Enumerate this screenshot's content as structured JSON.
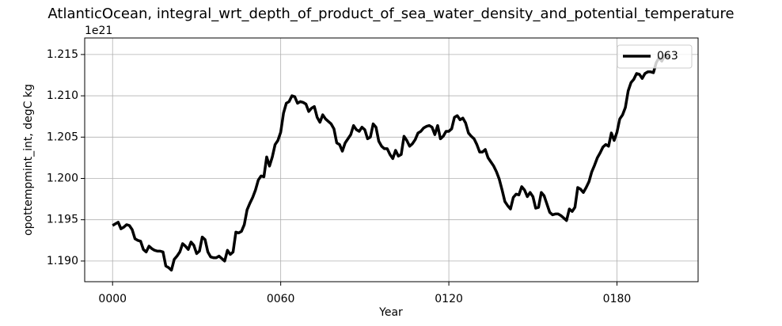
{
  "chart_data": {
    "type": "line",
    "title": "AtlanticOcean, integral_wrt_depth_of_product_of_sea_water_density_and_potential_temperature",
    "x_label": "Year",
    "y_label": "opottempmint_int, degC kg",
    "y_offset_label": "1e21",
    "x": [
      0,
      1,
      2,
      3,
      4,
      5,
      6,
      7,
      8,
      9,
      10,
      11,
      12,
      13,
      14,
      15,
      16,
      17,
      18,
      19,
      20,
      21,
      22,
      23,
      24,
      25,
      26,
      27,
      28,
      29,
      30,
      31,
      32,
      33,
      34,
      35,
      36,
      37,
      38,
      39,
      40,
      41,
      42,
      43,
      44,
      45,
      46,
      47,
      48,
      49,
      50,
      51,
      52,
      53,
      54,
      55,
      56,
      57,
      58,
      59,
      60,
      61,
      62,
      63,
      64,
      65,
      66,
      67,
      68,
      69,
      70,
      71,
      72,
      73,
      74,
      75,
      76,
      77,
      78,
      79,
      80,
      81,
      82,
      83,
      84,
      85,
      86,
      87,
      88,
      89,
      90,
      91,
      92,
      93,
      94,
      95,
      96,
      97,
      98,
      99,
      100,
      101,
      102,
      103,
      104,
      105,
      106,
      107,
      108,
      109,
      110,
      111,
      112,
      113,
      114,
      115,
      116,
      117,
      118,
      119,
      120,
      121,
      122,
      123,
      124,
      125,
      126,
      127,
      128,
      129,
      130,
      131,
      132,
      133,
      134,
      135,
      136,
      137,
      138,
      139,
      140,
      141,
      142,
      143,
      144,
      145,
      146,
      147,
      148,
      149,
      150,
      151,
      152,
      153,
      154,
      155,
      156,
      157,
      158,
      159,
      160,
      161,
      162,
      163,
      164,
      165,
      166,
      167,
      168,
      169,
      170,
      171,
      172,
      173,
      174,
      175,
      176,
      177,
      178,
      179,
      180,
      181,
      182,
      183,
      184,
      185,
      186,
      187,
      188,
      189,
      190,
      191,
      192,
      193,
      194,
      195,
      196,
      197,
      198,
      199
    ],
    "series": [
      {
        "name": "063",
        "color": "#000000",
        "values": [
          1.1943,
          1.1945,
          1.1947,
          1.1939,
          1.1941,
          1.1944,
          1.1943,
          1.1938,
          1.1927,
          1.1925,
          1.1924,
          1.1914,
          1.1911,
          1.1918,
          1.1915,
          1.1913,
          1.1912,
          1.1912,
          1.1911,
          1.1894,
          1.1892,
          1.1889,
          1.1902,
          1.1906,
          1.1911,
          1.1921,
          1.1918,
          1.1914,
          1.1923,
          1.1919,
          1.1909,
          1.1912,
          1.1929,
          1.1926,
          1.1911,
          1.1905,
          1.1904,
          1.1904,
          1.1906,
          1.1903,
          1.19,
          1.1913,
          1.1908,
          1.1911,
          1.1935,
          1.1934,
          1.1936,
          1.1944,
          1.1962,
          1.197,
          1.1977,
          1.1986,
          1.1998,
          1.2003,
          1.2002,
          1.2026,
          1.2015,
          1.2026,
          1.2041,
          1.2046,
          1.2056,
          1.2079,
          1.2091,
          1.2093,
          1.21,
          1.2099,
          1.2091,
          1.2093,
          1.2092,
          1.209,
          1.2081,
          1.2085,
          1.2087,
          1.2074,
          1.2068,
          1.2077,
          1.2072,
          1.2069,
          1.2066,
          1.206,
          1.2043,
          1.2041,
          1.2033,
          1.2043,
          1.2048,
          1.2053,
          1.2064,
          1.2059,
          1.2057,
          1.2062,
          1.2059,
          1.2048,
          1.205,
          1.2066,
          1.2062,
          1.2045,
          1.2039,
          1.2036,
          1.2036,
          1.2029,
          1.2024,
          1.2034,
          1.2027,
          1.2029,
          1.2051,
          1.2046,
          1.2039,
          1.2042,
          1.2047,
          1.2055,
          1.2057,
          1.2061,
          1.2063,
          1.2064,
          1.2062,
          1.2053,
          1.2064,
          1.2048,
          1.2051,
          1.2057,
          1.2057,
          1.206,
          1.2074,
          1.2076,
          1.2071,
          1.2073,
          1.2067,
          1.2055,
          1.2051,
          1.2048,
          1.2041,
          1.2032,
          1.2032,
          1.2035,
          1.2025,
          1.202,
          1.2015,
          1.2008,
          1.1999,
          1.1986,
          1.1972,
          1.1967,
          1.1963,
          1.1977,
          1.1981,
          1.198,
          1.199,
          1.1986,
          1.1978,
          1.1983,
          1.1978,
          1.1964,
          1.1965,
          1.1983,
          1.1979,
          1.1969,
          1.1959,
          1.1956,
          1.1957,
          1.1957,
          1.1955,
          1.1952,
          1.1949,
          1.1963,
          1.196,
          1.1965,
          1.1989,
          1.1987,
          1.1983,
          1.1989,
          1.1996,
          1.2008,
          1.2016,
          1.2025,
          1.2031,
          1.2038,
          1.2041,
          1.2039,
          1.2055,
          1.2046,
          1.2056,
          1.2072,
          1.2077,
          1.2086,
          1.2106,
          1.2116,
          1.212,
          1.2127,
          1.2126,
          1.2121,
          1.2127,
          1.2129,
          1.2129,
          1.2128,
          1.214,
          1.2146,
          1.2142,
          1.2149,
          1.2147,
          1.2148
        ]
      }
    ],
    "xlim": [
      -9.95,
      208.95
    ],
    "ylim": [
      1.1875,
      1.217
    ],
    "xticks": [
      {
        "value": 0,
        "label": "0000"
      },
      {
        "value": 60,
        "label": "0060"
      },
      {
        "value": 120,
        "label": "0120"
      },
      {
        "value": 180,
        "label": "0180"
      }
    ],
    "yticks": [
      {
        "value": 1.19,
        "label": "1.190"
      },
      {
        "value": 1.195,
        "label": "1.195"
      },
      {
        "value": 1.2,
        "label": "1.200"
      },
      {
        "value": 1.205,
        "label": "1.205"
      },
      {
        "value": 1.21,
        "label": "1.210"
      },
      {
        "value": 1.215,
        "label": "1.215"
      }
    ],
    "grid": true,
    "legend": "upper right"
  }
}
